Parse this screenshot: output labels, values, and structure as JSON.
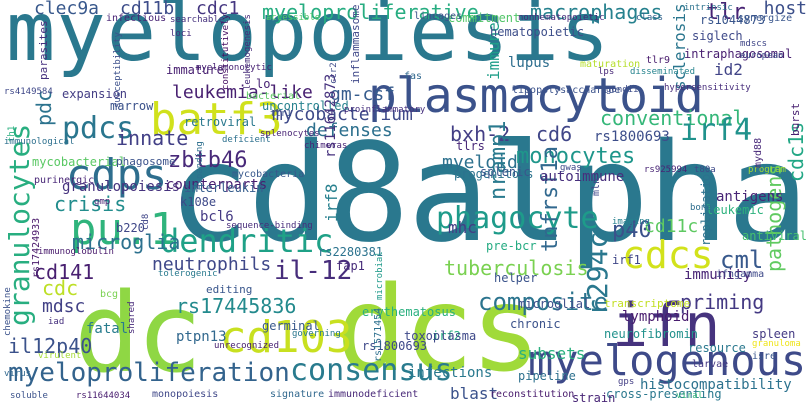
{
  "wordcloud": {
    "words": [
      {
        "id": "myelopoiesis",
        "text": "myelopoiesis",
        "color": "#2a788e"
      },
      {
        "id": "cd8alpha",
        "text": "cd8alpha",
        "color": "#2a788e"
      },
      {
        "id": "dcs",
        "text": "dcs",
        "color": "#a0da39"
      },
      {
        "id": "dc",
        "text": "dc",
        "color": "#8fd744"
      },
      {
        "id": "plasmacytoid",
        "text": "plasmacytoid",
        "color": "#3b528b"
      },
      {
        "id": "batf3",
        "text": "batf3",
        "color": "#d0e11c"
      },
      {
        "id": "cdps",
        "text": "cdps",
        "color": "#2e6e8e"
      },
      {
        "id": "pu1",
        "text": "pu.1",
        "color": "#2fb47c"
      },
      {
        "id": "dendritic",
        "text": "dendritic",
        "color": "#1fa187"
      },
      {
        "id": "cd103",
        "text": "cd103",
        "color": "#c8e020"
      },
      {
        "id": "ifn",
        "text": "ifn",
        "color": "#46337e"
      },
      {
        "id": "myelogenous",
        "text": "myelogenous",
        "color": "#3e4a89"
      },
      {
        "id": "myeloproliferation",
        "text": "myeloproliferation",
        "color": "#33638d"
      },
      {
        "id": "consensus",
        "text": "consensus",
        "color": "#297b8e"
      },
      {
        "id": "cdcs",
        "text": "cdcs",
        "color": "#d2e21b"
      },
      {
        "id": "granulocytes",
        "text": "granulocytes",
        "color": "#28ae80"
      },
      {
        "id": "myeloproliferative",
        "text": "myeloproliferative",
        "color": "#27ad81"
      },
      {
        "id": "macrophages",
        "text": "macrophages",
        "color": "#26818e"
      },
      {
        "id": "clec9a",
        "text": "clec9a",
        "color": "#38588c"
      },
      {
        "id": "cd11b",
        "text": "cd11b",
        "color": "#3d4d8a"
      },
      {
        "id": "cdc1",
        "text": "cdc1",
        "color": "#453781"
      },
      {
        "id": "tlr",
        "text": "tlr",
        "color": "#482374"
      },
      {
        "id": "host",
        "text": "host",
        "color": "#3c4f8a"
      },
      {
        "id": "leukemialike",
        "text": "leukemia-like",
        "color": "#482071"
      },
      {
        "id": "gmcsf",
        "text": "gm-csf",
        "color": "#365c8d"
      },
      {
        "id": "pdc",
        "text": "pdc",
        "color": "#2c738e"
      },
      {
        "id": "pdcs",
        "text": "pdcs",
        "color": "#2a768e"
      },
      {
        "id": "mycobacterium",
        "text": "mycobacterium",
        "color": "#3e4a89"
      },
      {
        "id": "defenses",
        "text": "defenses",
        "color": "#2d708e"
      },
      {
        "id": "bxh2",
        "text": "bxh-2",
        "color": "#433e85"
      },
      {
        "id": "cd6",
        "text": "cd6",
        "color": "#404688"
      },
      {
        "id": "rs1800693",
        "text": "rs1800693",
        "color": "#3d4e8a"
      },
      {
        "id": "conventional",
        "text": "conventional",
        "color": "#35b779"
      },
      {
        "id": "irf4",
        "text": "irf4",
        "color": "#20928c"
      },
      {
        "id": "innate",
        "text": "innate",
        "color": "#424086"
      },
      {
        "id": "crisis",
        "text": "crisis",
        "color": "#228d8d"
      },
      {
        "id": "zbtb46",
        "text": "zbtb46",
        "color": "#482979"
      },
      {
        "id": "myeloid",
        "text": "myeloid",
        "color": "#2d718e"
      },
      {
        "id": "monocytes",
        "text": "monocytes",
        "color": "#1f968b"
      },
      {
        "id": "granulopoiesis",
        "text": "granulopoiesis",
        "color": "#46327e"
      },
      {
        "id": "phagocyte",
        "text": "phagocyte",
        "color": "#1e9b8a"
      },
      {
        "id": "cml",
        "text": "cml",
        "color": "#38598c"
      },
      {
        "id": "pathogens",
        "text": "pathogens",
        "color": "#60ca60"
      },
      {
        "id": "cdc1s",
        "text": "cdc1s",
        "color": "#22a785"
      },
      {
        "id": "microglia",
        "text": "microglia",
        "color": "#2d718e"
      },
      {
        "id": "cd141",
        "text": "cd141",
        "color": "#481f70"
      },
      {
        "id": "neutrophils",
        "text": "neutrophils",
        "color": "#3f4889"
      },
      {
        "id": "il12",
        "text": "il-12",
        "color": "#472d7b"
      },
      {
        "id": "tuberculosis",
        "text": "tuberculosis",
        "color": "#7ad151"
      },
      {
        "id": "p40",
        "text": "p40",
        "color": "#3b528b"
      },
      {
        "id": "cd11c",
        "text": "cd11c",
        "color": "#5ec962"
      },
      {
        "id": "r294c",
        "text": "r294c",
        "color": "#2a788e"
      },
      {
        "id": "mdsc",
        "text": "mdsc",
        "color": "#424186"
      },
      {
        "id": "cdc",
        "text": "cdc",
        "color": "#bddf26"
      },
      {
        "id": "rs17445836",
        "text": "rs17445836",
        "color": "#238a8d"
      },
      {
        "id": "composite",
        "text": "composite",
        "color": "#2b748e"
      },
      {
        "id": "priming",
        "text": "priming",
        "color": "#443983"
      },
      {
        "id": "il12p40",
        "text": "il12p40",
        "color": "#3b528b"
      },
      {
        "id": "fatal",
        "text": "fatal",
        "color": "#287c8e"
      },
      {
        "id": "lymphoid",
        "text": "lymphoid",
        "color": "#481c6e"
      },
      {
        "id": "nramp1",
        "text": "nramp1",
        "color": "#297a8e"
      },
      {
        "id": "tnfrsf1a",
        "text": "tnfrsf1a",
        "color": "#31688e"
      },
      {
        "id": "mhc",
        "text": "mhc",
        "color": "#433d84"
      },
      {
        "id": "spleen",
        "text": "spleen",
        "color": "#443a83"
      },
      {
        "id": "immunity",
        "text": "immunity",
        "color": "#482475"
      },
      {
        "id": "subsets",
        "text": "subsets",
        "color": "#2ab07f"
      },
      {
        "id": "histocompatibility",
        "text": "histocompatibility",
        "color": "#2c728e"
      },
      {
        "id": "blast",
        "text": "blast",
        "color": "#3b528b"
      },
      {
        "id": "infections",
        "text": "infections",
        "color": "#29798e"
      },
      {
        "id": "id2",
        "text": "id2",
        "color": "#414487"
      },
      {
        "id": "antigens",
        "text": "antigens",
        "color": "#482576"
      },
      {
        "id": "mycobacterial",
        "text": "mycobacterial",
        "color": "#5ac864"
      },
      {
        "id": "immune",
        "text": "immune",
        "color": "#1f9e89"
      },
      {
        "id": "sclerosis",
        "text": "sclerosis",
        "color": "#2a768e"
      },
      {
        "id": "lupus",
        "text": "lupus",
        "color": "#2e6e8e"
      },
      {
        "id": "irf8",
        "text": "irf8",
        "color": "#27808e"
      },
      {
        "id": "rs1800693b",
        "text": "rs1800693",
        "color": "#3e4989"
      },
      {
        "id": "irf2",
        "text": "irf2",
        "color": "#27ad81"
      },
      {
        "id": "resource",
        "text": "resource",
        "color": "#2a788e"
      },
      {
        "id": "chronic",
        "text": "chronic",
        "color": "#3b528b"
      },
      {
        "id": "microglial",
        "text": "microglial",
        "color": "#3d4e8a"
      },
      {
        "id": "toxoplasma",
        "text": "toxoplasma",
        "color": "#3e4989"
      },
      {
        "id": "ptpn13",
        "text": "ptpn13",
        "color": "#31688e"
      },
      {
        "id": "monopoiesis",
        "text": "monopoiesis",
        "color": "#3f4788"
      },
      {
        "id": "immunodeficient",
        "text": "immunodeficient",
        "color": "#482878"
      },
      {
        "id": "reconstitution",
        "text": "reconstitution",
        "color": "#481a6c"
      },
      {
        "id": "crosspresenting",
        "text": "cross-presenting",
        "color": "#2a788e"
      },
      {
        "id": "strain",
        "text": "strain",
        "color": "#482576"
      },
      {
        "id": "isre",
        "text": "isre",
        "color": "#39568c"
      },
      {
        "id": "granuloma",
        "text": "granuloma",
        "color": "#efe51c"
      },
      {
        "id": "counterparts",
        "text": "counterparts",
        "color": "#481f70"
      },
      {
        "id": "fap1",
        "text": "fap1",
        "color": "#472c7a"
      },
      {
        "id": "bcl6",
        "text": "bcl6",
        "color": "#443983"
      },
      {
        "id": "k108e",
        "text": "k108e",
        "color": "#3e4989"
      },
      {
        "id": "interleukin",
        "text": "interleukin",
        "color": "#365d8d"
      },
      {
        "id": "prebcr",
        "text": "pre-bcr",
        "color": "#25ab82"
      },
      {
        "id": "progenitors",
        "text": "progenitors",
        "color": "#2c738e"
      },
      {
        "id": "tlrs",
        "text": "tlrs",
        "color": "#482878"
      },
      {
        "id": "splenic",
        "text": "splenic",
        "color": "#39568c"
      },
      {
        "id": "autoimmune",
        "text": "autoimmune",
        "color": "#472f7d"
      },
      {
        "id": "lo",
        "text": "lo",
        "color": "#482475"
      },
      {
        "id": "bacterial",
        "text": "bacterial",
        "color": "#5dc863"
      },
      {
        "id": "uncontrolled",
        "text": "uncontrolled",
        "color": "#26828e"
      },
      {
        "id": "retroviral",
        "text": "retroviral",
        "color": "#2a788e"
      },
      {
        "id": "marrow",
        "text": "marrow",
        "color": "#3b528b"
      },
      {
        "id": "immature",
        "text": "immature",
        "color": "#482071"
      },
      {
        "id": "expansion",
        "text": "expansion",
        "color": "#433d84"
      },
      {
        "id": "bcg",
        "text": "bcg",
        "color": "#7ad151"
      },
      {
        "id": "helper",
        "text": "helper",
        "color": "#3a538b"
      },
      {
        "id": "germinal",
        "text": "germinal",
        "color": "#38598c"
      },
      {
        "id": "erythematosus",
        "text": "erythematosus",
        "color": "#2ab07f"
      },
      {
        "id": "neurofibromin",
        "text": "neurofibromin",
        "color": "#21918c"
      },
      {
        "id": "pipeline",
        "text": "pipeline",
        "color": "#2d708e"
      },
      {
        "id": "replication",
        "text": "replication",
        "color": "#2c728e"
      },
      {
        "id": "commitment",
        "text": "commitment",
        "color": "#52c569"
      },
      {
        "id": "hematopoietic",
        "text": "hematopoietic",
        "color": "#3d4e8a"
      },
      {
        "id": "infectious",
        "text": "infectious",
        "color": "#482475"
      },
      {
        "id": "loci",
        "text": "loci",
        "color": "#472f7d"
      },
      {
        "id": "searchable",
        "text": "searchable",
        "color": "#46327e"
      },
      {
        "id": "lineages",
        "text": "lineages",
        "color": "#3b528b"
      },
      {
        "id": "nonhematopoietic",
        "text": "nonhematopoietic",
        "color": "#472a7a"
      },
      {
        "id": "siglech",
        "text": "siglech",
        "color": "#3e4989"
      },
      {
        "id": "intraphagosomal",
        "text": "intraphagosomal",
        "color": "#481f70"
      },
      {
        "id": "mdscs",
        "text": "mdscs",
        "color": "#404688"
      },
      {
        "id": "european",
        "text": "european",
        "color": "#3e4c8a"
      },
      {
        "id": "rs1044873",
        "text": "rs1044873",
        "color": "#39558c"
      },
      {
        "id": "synergize",
        "text": "synergize",
        "color": "#39568c"
      },
      {
        "id": "burst",
        "text": "burst",
        "color": "#482071"
      },
      {
        "id": "tlr9",
        "text": "tlr9",
        "color": "#481b6d"
      },
      {
        "id": "lipopolysaccharide",
        "text": "lipopolysaccharide",
        "color": "#3b528b"
      },
      {
        "id": "gondii",
        "text": "gondii",
        "color": "#3d4d8a"
      },
      {
        "id": "hypersensitivity",
        "text": "hypersensitivity",
        "color": "#472d7b"
      },
      {
        "id": "leukemogenesis",
        "text": "leukemogenesis",
        "color": "#472c7a"
      },
      {
        "id": "constitutively",
        "text": "constitutively",
        "color": "#471063"
      },
      {
        "id": "myelomonocytic",
        "text": "myelomonocytic",
        "color": "#482374"
      },
      {
        "id": "susceptibility",
        "text": "susceptibility",
        "color": "#3c508b"
      },
      {
        "id": "parasites",
        "text": "parasites",
        "color": "#46307e"
      },
      {
        "id": "rs4149584",
        "text": "rs4149584",
        "color": "#3f4889"
      },
      {
        "id": "th1",
        "text": "th1",
        "color": "#2ab07f"
      },
      {
        "id": "immunological",
        "text": "immunological",
        "color": "#2d708e"
      },
      {
        "id": "rs2280381",
        "text": "rs2280381",
        "color": "#2c738e"
      },
      {
        "id": "phagosome",
        "text": "phagosome",
        "color": "#3b528b"
      },
      {
        "id": "mycobacteria",
        "text": "mycobacteria",
        "color": "#38588c"
      },
      {
        "id": "purinergic",
        "text": "purinergic",
        "color": "#482677"
      },
      {
        "id": "gmp",
        "text": "gmp",
        "color": "#482173"
      },
      {
        "id": "cd8",
        "text": "cd8",
        "color": "#404688"
      },
      {
        "id": "b220",
        "text": "b220",
        "color": "#3f4788"
      },
      {
        "id": "rs17424933",
        "text": "rs17424933",
        "color": "#481769"
      },
      {
        "id": "iad",
        "text": "iad",
        "color": "#46307e"
      },
      {
        "id": "immunoglobulin",
        "text": "immunoglobulin",
        "color": "#481a6c"
      },
      {
        "id": "chemokine",
        "text": "chemokine",
        "color": "#3b528b"
      },
      {
        "id": "virulent",
        "text": "virulent",
        "color": "#a5db36"
      },
      {
        "id": "virus",
        "text": "virus",
        "color": "#31688e"
      },
      {
        "id": "soluble",
        "text": "soluble",
        "color": "#3b528b"
      },
      {
        "id": "rs11644034",
        "text": "rs11644034",
        "color": "#481c6e"
      },
      {
        "id": "signature",
        "text": "signature",
        "color": "#31688e"
      },
      {
        "id": "governing",
        "text": "governing",
        "color": "#2a778e"
      },
      {
        "id": "shared",
        "text": "shared",
        "color": "#472a7a"
      },
      {
        "id": "unrecognized",
        "text": "unrecognized",
        "color": "#482071"
      },
      {
        "id": "tolerogenic",
        "text": "tolerogenic",
        "color": "#297a8e"
      },
      {
        "id": "editing",
        "text": "editing",
        "color": "#39568c"
      },
      {
        "id": "rs1571454",
        "text": "rs1571454",
        "color": "#2d708e"
      },
      {
        "id": "microbial",
        "text": "microbial",
        "color": "#1f9a8a"
      },
      {
        "id": "sequencebinding",
        "text": "sequence-binding",
        "color": "#472c7a"
      },
      {
        "id": "rs11642873",
        "text": "rs11642873",
        "color": "#46327e"
      },
      {
        "id": "transcriptome",
        "text": "transcriptome",
        "color": "#c2df23"
      },
      {
        "id": "irf1",
        "text": "irf1",
        "color": "#3f4788"
      },
      {
        "id": "leukemic",
        "text": "leukemic",
        "color": "#2db27d"
      },
      {
        "id": "antiviral",
        "text": "antiviral",
        "color": "#46c06f"
      },
      {
        "id": "ifngamma",
        "text": "ifngamma",
        "color": "#3e4989"
      },
      {
        "id": "larvae",
        "text": "larvae",
        "color": "#443983"
      },
      {
        "id": "gps",
        "text": "gps",
        "color": "#433e85"
      },
      {
        "id": "viral",
        "text": "viral",
        "color": "#35b779"
      },
      {
        "id": "program",
        "text": "program",
        "color": "#a2da37"
      },
      {
        "id": "t80a",
        "text": "t80a",
        "color": "#3e4a89"
      },
      {
        "id": "rs925994",
        "text": "rs925994",
        "color": "#482475"
      },
      {
        "id": "bone",
        "text": "bone",
        "color": "#2e6e8e"
      },
      {
        "id": "myd88",
        "text": "myd88",
        "color": "#482979"
      },
      {
        "id": "imaging",
        "text": "imaging",
        "color": "#26818e"
      },
      {
        "id": "gwas",
        "text": "gwas",
        "color": "#3e4989"
      },
      {
        "id": "mln",
        "text": "mln",
        "color": "#3f4889"
      },
      {
        "id": "chimeras",
        "text": "chimeras",
        "color": "#482576"
      },
      {
        "id": "maturation",
        "text": "maturation",
        "color": "#b5de2b"
      },
      {
        "id": "disseminated",
        "text": "disseminated",
        "color": "#25838e"
      },
      {
        "id": "lps",
        "text": "lps",
        "color": "#482878"
      },
      {
        "id": "class",
        "text": "class",
        "color": "#33628d"
      },
      {
        "id": "intrinsic",
        "text": "intrinsic",
        "color": "#2c728e"
      },
      {
        "id": "inflammasome",
        "text": "inflammasome",
        "color": "#3f4889"
      },
      {
        "id": "fas",
        "text": "fas",
        "color": "#31688e"
      },
      {
        "id": "accessible",
        "text": "accessible",
        "color": "#52c569"
      },
      {
        "id": "ccr2",
        "text": "ccr2",
        "color": "#3e4a89"
      },
      {
        "id": "tlr1",
        "text": "tlr1",
        "color": "#3a538b"
      },
      {
        "id": "proinflammatory",
        "text": "proinflammatory",
        "color": "#46307e"
      },
      {
        "id": "deficient",
        "text": "deficient",
        "color": "#2d708e"
      },
      {
        "id": "splenocytes",
        "text": "splenocytes",
        "color": "#482374"
      },
      {
        "id": "expanding",
        "text": "expanding",
        "color": "#2e6f8e"
      },
      {
        "id": "larval",
        "text": "larval",
        "color": "#3b528b"
      },
      {
        "id": "compensatory",
        "text": "compensatory",
        "color": "#404588"
      }
    ]
  }
}
